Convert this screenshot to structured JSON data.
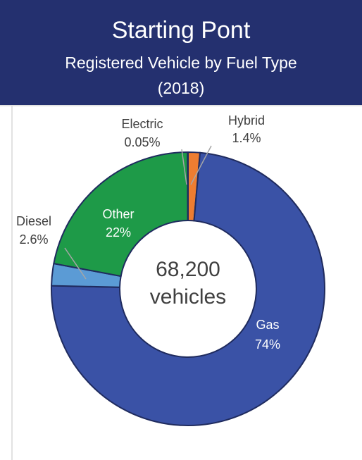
{
  "chart_data": {
    "type": "donut",
    "title": "Starting Pont",
    "subtitle": [
      "Registered Vehicle by Fuel Type",
      "(2018)"
    ],
    "center_label": [
      "68,200",
      "vehicles"
    ],
    "categories": [
      "Hybrid",
      "Gas",
      "Diesel",
      "Other",
      "Electric"
    ],
    "values": [
      1.4,
      74,
      2.6,
      22,
      0.05
    ],
    "value_labels": [
      "1.4%",
      "74%",
      "2.6%",
      "22%",
      "0.05%"
    ],
    "colors": [
      "#ed7d31",
      "#3a52a6",
      "#5b9bd5",
      "#1e9a48",
      "#4a7fc0"
    ]
  }
}
